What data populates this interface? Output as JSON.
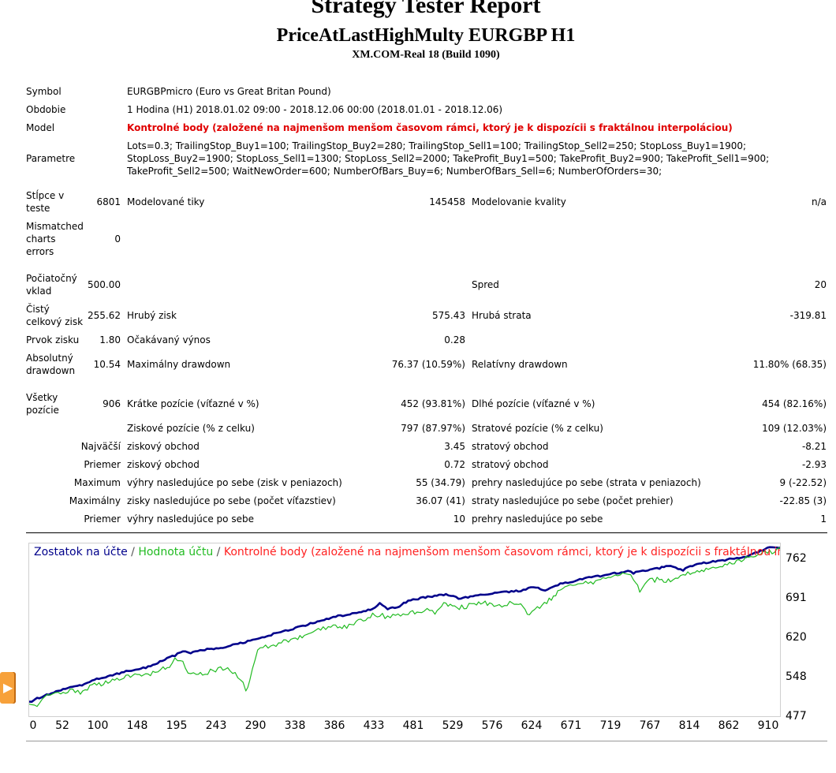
{
  "header": {
    "title": "Strategy Tester Report",
    "subtitle": "PriceAtLastHighMulty EURGBP H1",
    "build": "XM.COM-Real 18 (Build 1090)"
  },
  "info": {
    "symbol_label": "Symbol",
    "symbol_value": "EURGBPmicro (Euro vs Great Britan Pound)",
    "period_label": "Obdobie",
    "period_value": "1 Hodina (H1) 2018.01.02 09:00 - 2018.12.06 00:00 (2018.01.01 - 2018.12.06)",
    "model_label": "Model",
    "model_value": "Kontrolné body (založené na najmenšom menšom časovom rámci, ktorý je k dispozícii s fraktálnou interpoláciou)",
    "params_label": "Parametre",
    "params_lines": [
      "Lots=0.3; TrailingStop_Buy1=100; TrailingStop_Buy2=280; TrailingStop_Sell1=100; TrailingStop_Sell2=250; StopLoss_Buy1=1900;",
      "StopLoss_Buy2=1900; StopLoss_Sell1=1300; StopLoss_Sell2=2000; TakeProfit_Buy1=500; TakeProfit_Buy2=900; TakeProfit_Sell1=900;",
      "TakeProfit_Sell2=500; WaitNewOrder=600; NumberOfBars_Buy=6; NumberOfBars_Sell=6; NumberOfOrders=30;"
    ]
  },
  "stats": {
    "bars_label": [
      "Stĺpce v",
      "teste"
    ],
    "bars_value": "6801",
    "ticks_label": "Modelované tiky",
    "ticks_value": "145458",
    "quality_label": "Modelovanie kvality",
    "quality_value": "n/a",
    "mismatch_label": [
      "Mismatched",
      "charts",
      "errors"
    ],
    "mismatch_value": "0",
    "deposit_label": [
      "Počiatočný",
      "vklad"
    ],
    "deposit_value": "500.00",
    "spread_label": "Spred",
    "spread_value": "20",
    "net_label": [
      "Čistý",
      "celkový zisk"
    ],
    "net_value": "255.62",
    "gross_profit_label": "Hrubý zisk",
    "gross_profit_value": "575.43",
    "gross_loss_label": "Hrubá strata",
    "gross_loss_value": "-319.81",
    "pf_label": "Prvok zisku",
    "pf_value": "1.80",
    "expected_label": "Očakávaný výnos",
    "expected_value": "0.28",
    "abs_dd_label": [
      "Absolutný",
      "drawdown"
    ],
    "abs_dd_value": "10.54",
    "max_dd_label": "Maximálny drawdown",
    "max_dd_value": "76.37 (10.59%)",
    "rel_dd_label": "Relatívny drawdown",
    "rel_dd_value": "11.80% (68.35)",
    "total_label": [
      "Všetky",
      "pozície"
    ],
    "total_value": "906",
    "short_label": "Krátke pozície (víťazné v %)",
    "short_value": "452 (93.81%)",
    "long_label": "Dlhé pozície (víťazné v %)",
    "long_value": "454 (82.16%)",
    "win_pos_label": "Ziskové pozície (% z celku)",
    "win_pos_value": "797 (87.97%)",
    "loss_pos_label": "Stratové pozície (% z celku)",
    "loss_pos_value": "109 (12.03%)",
    "largest_label": "Najväčší",
    "largest_win_label": "ziskový obchod",
    "largest_win_value": "3.45",
    "largest_loss_label": "stratový obchod",
    "largest_loss_value": "-8.21",
    "average_label": "Priemer",
    "avg_win_label": "ziskový obchod",
    "avg_win_value": "0.72",
    "avg_loss_label": "stratový obchod",
    "avg_loss_value": "-2.93",
    "maximum_label": "Maximum",
    "max_cons_win_label": "výhry nasledujúce po sebe (zisk v peniazoch)",
    "max_cons_win_value": "55 (34.79)",
    "max_cons_loss_label": "prehry nasledujúce po sebe (strata v peniazoch)",
    "max_cons_loss_value": "9 (-22.52)",
    "maximal_label": "Maximálny",
    "maximal_profit_label": "zisky nasledujúce po sebe (počet víťazstiev)",
    "maximal_profit_value": "36.07 (41)",
    "maximal_loss_label": "straty nasledujúce po sebe (počet prehier)",
    "maximal_loss_value": "-22.85 (3)",
    "avg2_label": "Priemer",
    "avg_cons_win_label": "výhry nasledujúce po sebe",
    "avg_cons_win_value": "10",
    "avg_cons_loss_label": "prehry nasledujúce po sebe",
    "avg_cons_loss_value": "1"
  },
  "chart_data": {
    "type": "line",
    "legend_parts": [
      "Zostatok na účte",
      " / ",
      "Hodnota účtu",
      " / ",
      "Kontrolné body (založené na najmenšom menšom časovom rámci, ktorý je k dispozícii s fraktálnou interpoláciou)"
    ],
    "legend_colors": [
      "#00008b",
      "#555555",
      "#22bb22",
      "#555555",
      "#ff2222"
    ],
    "x_ticks": [
      "0",
      "52",
      "100",
      "148",
      "195",
      "243",
      "290",
      "338",
      "386",
      "433",
      "481",
      "529",
      "576",
      "624",
      "671",
      "719",
      "767",
      "814",
      "862",
      "910"
    ],
    "y_ticks": [
      "762",
      "691",
      "620",
      "548",
      "477"
    ],
    "xlim": [
      0,
      955
    ],
    "ylim": [
      477,
      762
    ],
    "series": [
      {
        "name": "Zostatok na účte",
        "color": "#00008b",
        "x": [
          0,
          10,
          25,
          40,
          52,
          70,
          80,
          100,
          120,
          148,
          160,
          175,
          185,
          195,
          205,
          220,
          243,
          265,
          290,
          310,
          338,
          360,
          386,
          410,
          433,
          445,
          455,
          470,
          481,
          500,
          529,
          545,
          560,
          576,
          600,
          624,
          640,
          655,
          671,
          690,
          705,
          719,
          740,
          760,
          767,
          785,
          800,
          814,
          830,
          845,
          862,
          880,
          895,
          910,
          925,
          940,
          955
        ],
        "y": [
          505,
          512,
          520,
          527,
          532,
          538,
          545,
          552,
          560,
          568,
          575,
          585,
          590,
          598,
          595,
          600,
          604,
          611,
          620,
          629,
          640,
          649,
          660,
          666,
          673,
          684,
          674,
          680,
          689,
          695,
          701,
          694,
          697,
          701,
          705,
          708,
          715,
          708,
          719,
          725,
          730,
          733,
          739,
          743,
          740,
          745,
          749,
          753,
          745,
          756,
          759,
          763,
          766,
          770,
          778,
          786,
          787
        ]
      },
      {
        "name": "Hodnota účtu",
        "color": "#22bb22",
        "x": [
          0,
          10,
          20,
          30,
          40,
          52,
          65,
          80,
          100,
          120,
          140,
          148,
          160,
          170,
          178,
          185,
          195,
          205,
          212,
          220,
          230,
          243,
          255,
          268,
          275,
          280,
          290,
          300,
          310,
          320,
          338,
          355,
          370,
          386,
          400,
          415,
          433,
          445,
          455,
          465,
          481,
          495,
          505,
          515,
          529,
          540,
          555,
          565,
          576,
          590,
          600,
          610,
          624,
          635,
          645,
          660,
          671,
          680,
          690,
          700,
          719,
          735,
          750,
          760,
          767,
          775,
          785,
          800,
          814,
          830,
          845,
          862,
          880,
          895,
          910,
          925,
          940,
          955
        ],
        "y": [
          505,
          497,
          512,
          522,
          518,
          526,
          522,
          535,
          541,
          549,
          556,
          554,
          560,
          566,
          572,
          585,
          577,
          554,
          560,
          558,
          561,
          568,
          564,
          548,
          527,
          542,
          600,
          605,
          608,
          613,
          622,
          629,
          638,
          645,
          642,
          650,
          662,
          665,
          660,
          664,
          668,
          670,
          675,
          669,
          685,
          676,
          679,
          684,
          687,
          682,
          679,
          684,
          683,
          664,
          677,
          690,
          704,
          712,
          716,
          720,
          725,
          733,
          737,
          742,
          730,
          708,
          726,
          728,
          726,
          736,
          744,
          748,
          752,
          760,
          766,
          772,
          778,
          784
        ]
      }
    ],
    "title": "",
    "xlabel": "",
    "ylabel": ""
  }
}
